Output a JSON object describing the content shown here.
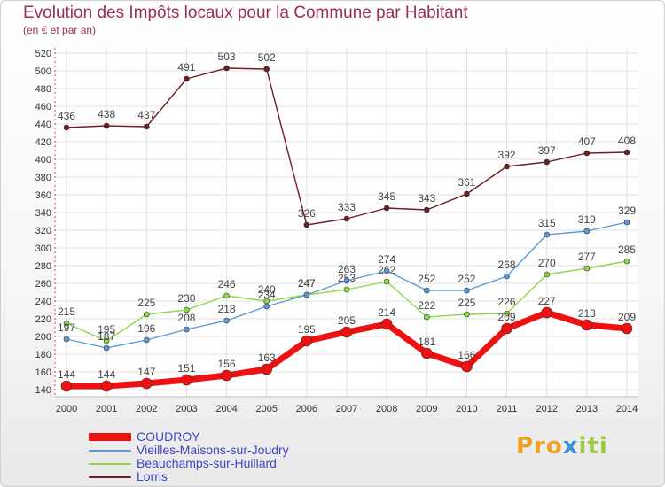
{
  "title": "Evolution des Impôts locaux pour la Commune par Habitant",
  "subtitle": "(en € et par an)",
  "logo": {
    "p1": "Pro",
    "p2": "x",
    "p3": "iti"
  },
  "chart_data": {
    "type": "line",
    "x": [
      "2000",
      "2001",
      "2002",
      "2003",
      "2004",
      "2005",
      "2006",
      "2007",
      "2008",
      "2009",
      "2010",
      "2011",
      "2012",
      "2013",
      "2014"
    ],
    "ylim": [
      140,
      520
    ],
    "yticks": [
      140,
      160,
      180,
      200,
      220,
      240,
      260,
      280,
      300,
      320,
      340,
      360,
      380,
      400,
      420,
      440,
      460,
      480,
      500,
      520
    ],
    "grid": true,
    "legend_position": "bottom-left",
    "series": [
      {
        "name": "Lorris",
        "color": "#6b1f24",
        "width": 1.4,
        "marker": 3,
        "labels": true,
        "values": [
          436,
          438,
          437,
          491,
          503,
          502,
          326,
          333,
          345,
          343,
          361,
          392,
          397,
          407,
          408
        ]
      },
      {
        "name": "Beauchamps-sur-Huillard",
        "color": "#8fd84a",
        "width": 1.4,
        "marker": 3,
        "labels": true,
        "values": [
          215,
          195,
          225,
          230,
          246,
          240,
          247,
          253,
          262,
          222,
          225,
          226,
          270,
          277,
          285
        ]
      },
      {
        "name": "Vieilles-Maisons-sur-Joudry",
        "color": "#5a9bd5",
        "width": 1.4,
        "marker": 3,
        "labels": true,
        "values": [
          197,
          187,
          196,
          208,
          218,
          234,
          247,
          263,
          274,
          252,
          252,
          268,
          315,
          319,
          329
        ]
      },
      {
        "name": "COUDROY",
        "color": "#ee1111",
        "width": 7,
        "marker": 6,
        "labels": true,
        "values": [
          144,
          144,
          147,
          151,
          156,
          163,
          195,
          205,
          214,
          181,
          166,
          209,
          227,
          213,
          209
        ]
      }
    ]
  },
  "legend": [
    {
      "label": "COUDROY",
      "color": "#ee1111",
      "thickness": 9
    },
    {
      "label": "Vieilles-Maisons-sur-Joudry",
      "color": "#5a9bd5",
      "thickness": 2
    },
    {
      "label": "Beauchamps-sur-Huillard",
      "color": "#8fd84a",
      "thickness": 2
    },
    {
      "label": "Lorris",
      "color": "#6b1f24",
      "thickness": 2
    }
  ]
}
